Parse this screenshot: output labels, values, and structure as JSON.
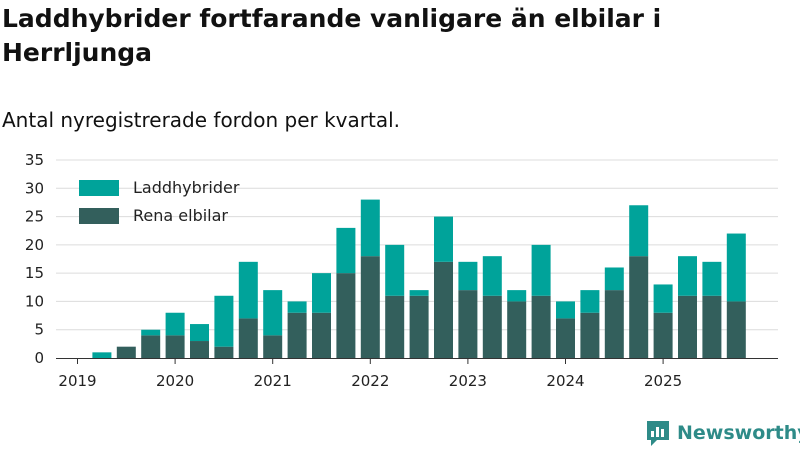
{
  "chart_data": {
    "type": "bar",
    "stacked": true,
    "title": "Laddhybrider fortfarande vanligare än elbilar i Herrljunga",
    "subtitle": "Antal nyregistrerade fordon per kvartal.",
    "categories": [
      "2019 Q1",
      "2019 Q2",
      "2019 Q3",
      "2019 Q4",
      "2020 Q1",
      "2020 Q2",
      "2020 Q3",
      "2020 Q4",
      "2021 Q1",
      "2021 Q2",
      "2021 Q3",
      "2021 Q4",
      "2022 Q1",
      "2022 Q2",
      "2022 Q3",
      "2022 Q4",
      "2023 Q1",
      "2023 Q2",
      "2023 Q3",
      "2023 Q4",
      "2024 Q1",
      "2024 Q2",
      "2024 Q3",
      "2024 Q4",
      "2025 Q1",
      "2025 Q2",
      "2025 Q3",
      "2025 Q4"
    ],
    "series": [
      {
        "name": "Rena elbilar",
        "color": "#335f5c",
        "values": [
          0,
          0,
          2,
          4,
          4,
          3,
          2,
          7,
          4,
          8,
          8,
          15,
          18,
          11,
          11,
          17,
          12,
          11,
          10,
          11,
          7,
          8,
          12,
          18,
          8,
          11,
          11,
          10
        ]
      },
      {
        "name": "Laddhybrider",
        "color": "#00a39a",
        "values": [
          0,
          1,
          0,
          1,
          4,
          3,
          9,
          10,
          8,
          2,
          7,
          8,
          10,
          9,
          1,
          8,
          5,
          7,
          2,
          9,
          3,
          4,
          4,
          9,
          5,
          7,
          6,
          12
        ]
      }
    ],
    "x_tick_labels": [
      "2019",
      "2020",
      "2021",
      "2022",
      "2023",
      "2024",
      "2025"
    ],
    "ylim": [
      0,
      35
    ],
    "y_ticks": [
      0,
      5,
      10,
      15,
      20,
      25,
      30,
      35
    ],
    "grid": "horizontal",
    "legend": {
      "position": "top-left",
      "order": [
        "Laddhybrider",
        "Rena elbilar"
      ]
    }
  },
  "branding": {
    "logo_text": "Newsworthy",
    "logo_color": "#2e8b88"
  }
}
